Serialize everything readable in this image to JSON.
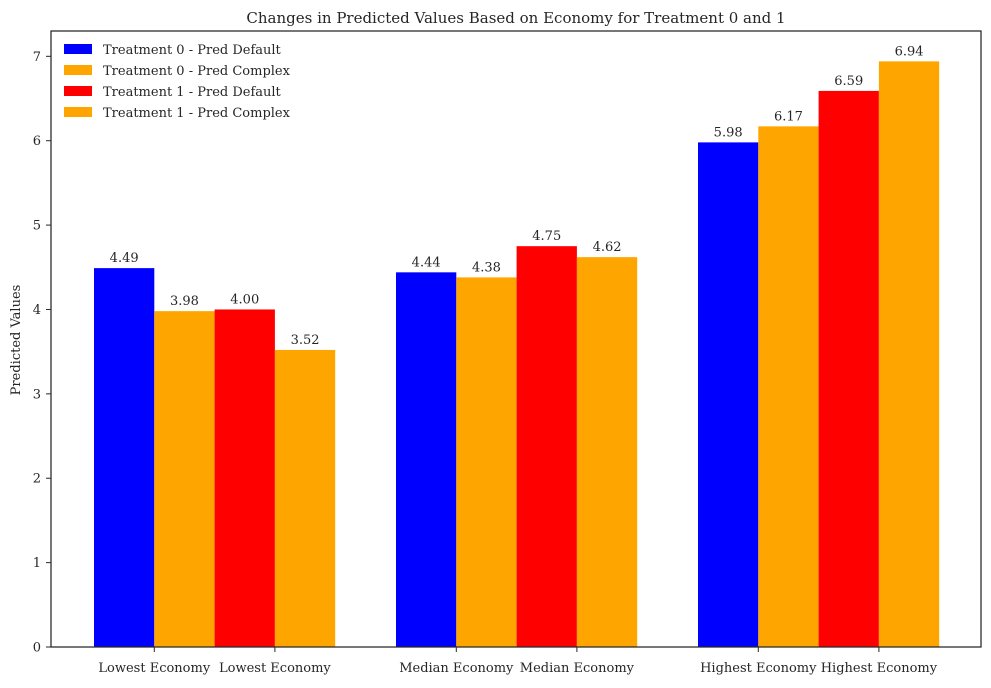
{
  "chart_data": {
    "type": "bar",
    "title": "Changes in Predicted Values Based on Economy for Treatment 0 and 1",
    "xlabel": "",
    "ylabel": "Predicted Values",
    "ylim": [
      0,
      7.3
    ],
    "yticks": [
      0,
      1,
      2,
      3,
      4,
      5,
      6,
      7
    ],
    "grid": false,
    "legend_position": "top-left",
    "categories": [
      "Lowest Economy",
      "Median Economy",
      "Highest Economy"
    ],
    "xtick_labels": [
      "Lowest Economy",
      "Lowest Economy",
      "Median Economy",
      "Median Economy",
      "Highest Economy",
      "Highest Economy"
    ],
    "series": [
      {
        "name": "Treatment 0 - Pred Default",
        "color": "#0000ff",
        "values": [
          4.49,
          4.44,
          5.98
        ],
        "labels": [
          "4.49",
          "4.44",
          "5.98"
        ]
      },
      {
        "name": "Treatment 0 - Pred Complex",
        "color": "#ffa500",
        "values": [
          3.98,
          4.38,
          6.17
        ],
        "labels": [
          "3.98",
          "4.38",
          "6.17"
        ]
      },
      {
        "name": "Treatment 1 - Pred Default",
        "color": "#ff0000",
        "values": [
          4.0,
          4.75,
          6.59
        ],
        "labels": [
          "4.00",
          "4.75",
          "6.59"
        ]
      },
      {
        "name": "Treatment 1 - Pred Complex",
        "color": "#ffa500",
        "values": [
          3.52,
          4.62,
          6.94
        ],
        "labels": [
          "3.52",
          "4.62",
          "6.94"
        ]
      }
    ]
  }
}
